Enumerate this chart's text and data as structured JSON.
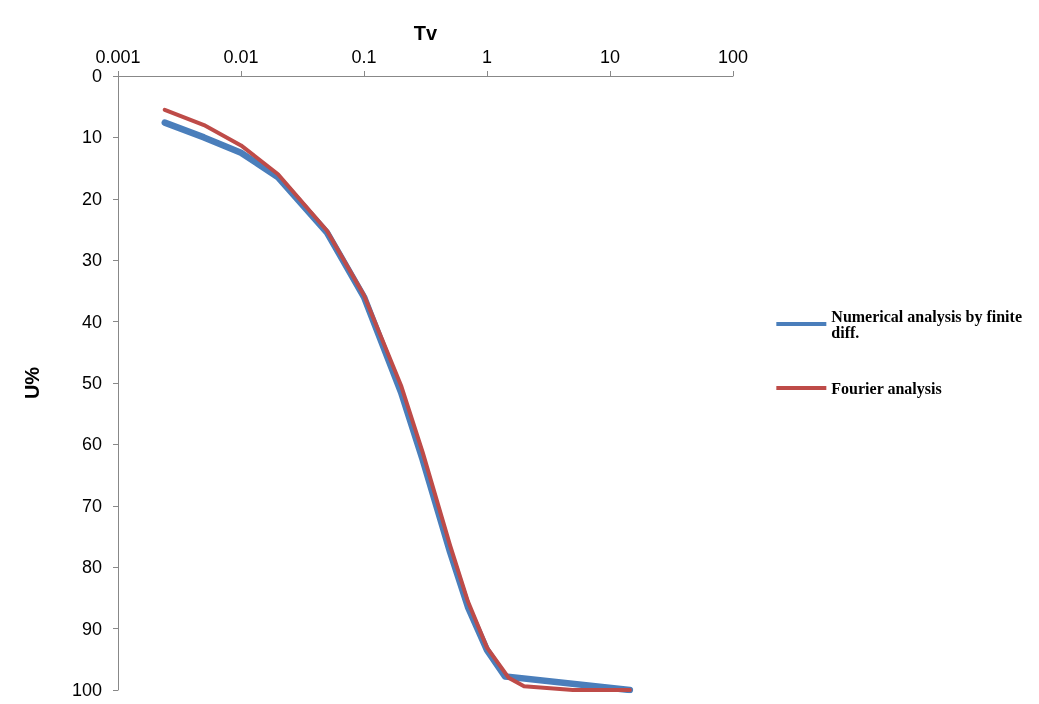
{
  "chart_data": {
    "type": "line",
    "xlabel": "Tv",
    "ylabel": "U%",
    "log": "x",
    "xlim": [
      0.001,
      100
    ],
    "xticks": [
      0.001,
      0.01,
      0.1,
      1,
      10,
      100
    ],
    "ylim": [
      100,
      0
    ],
    "yticks": [
      0,
      10,
      20,
      30,
      40,
      50,
      60,
      70,
      80,
      90,
      100
    ],
    "grid": false,
    "legend": "right",
    "marker": "none",
    "line_style": "solid",
    "series": [
      {
        "name": "Numerical analysis by finite diff.",
        "color": "#4a7ebb",
        "x": [
          0.0024,
          0.005,
          0.01,
          0.02,
          0.05,
          0.1,
          0.2,
          0.3,
          0.5,
          0.7,
          1,
          1.4,
          14.5
        ],
        "values": [
          7.6,
          10,
          12.5,
          16.5,
          25.5,
          36,
          51.5,
          62.5,
          77.5,
          86.5,
          93.5,
          97.8,
          100
        ]
      },
      {
        "name": "Fourier analysis",
        "color": "#be4b48",
        "x": [
          0.0024,
          0.005,
          0.01,
          0.02,
          0.05,
          0.1,
          0.2,
          0.3,
          0.5,
          0.7,
          1,
          1.5,
          2,
          5,
          14.5
        ],
        "values": [
          5.5,
          8,
          11.3,
          16,
          25.2,
          35.7,
          50.4,
          61.3,
          76.4,
          85.6,
          93.1,
          98,
          99.4,
          100,
          100
        ]
      }
    ]
  }
}
